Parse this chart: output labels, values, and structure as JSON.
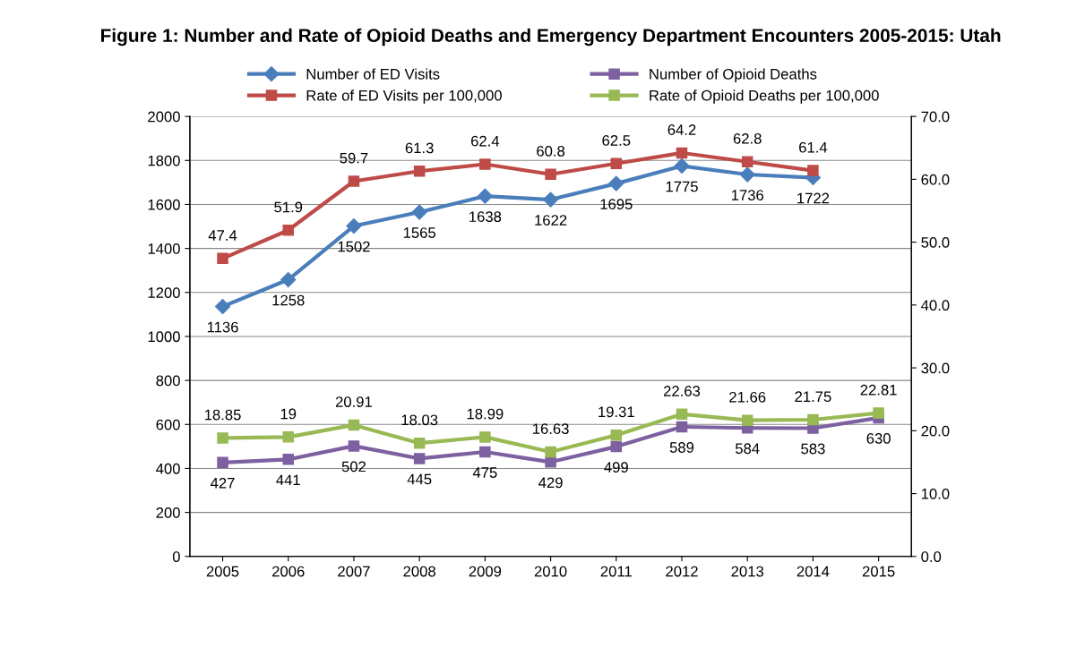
{
  "chart_data": {
    "type": "line",
    "title": "Figure 1: Number and Rate of Opioid Deaths and Emergency Department Encounters 2005-2015: Utah",
    "categories": [
      "2005",
      "2006",
      "2007",
      "2008",
      "2009",
      "2010",
      "2011",
      "2012",
      "2013",
      "2014",
      "2015"
    ],
    "series": [
      {
        "name": "Number of ED Visits",
        "color": "#4a7ebb",
        "marker": "diamond",
        "values": [
          1136,
          1258,
          1502,
          1565,
          1638,
          1622,
          1695,
          1775,
          1736,
          1722,
          null
        ]
      },
      {
        "name": "Rate of ED Visits per 100,000",
        "color": "#be4b48",
        "marker": "square",
        "axis": "y2",
        "values": [
          47.4,
          51.9,
          59.7,
          61.3,
          62.4,
          60.8,
          62.5,
          64.2,
          62.8,
          61.4,
          null
        ]
      },
      {
        "name": "Number of Opioid Deaths",
        "color": "#7d60a0",
        "marker": "square",
        "values": [
          427,
          441,
          502,
          445,
          475,
          429,
          499,
          589,
          584,
          583,
          630
        ]
      },
      {
        "name": "Rate of Opioid Deaths per 100,000",
        "color": "#98b954",
        "marker": "square",
        "axis": "y2",
        "values": [
          18.85,
          19,
          20.91,
          18.03,
          18.99,
          16.63,
          19.31,
          22.63,
          21.66,
          21.75,
          22.81
        ]
      }
    ],
    "ylim": [
      0,
      2000
    ],
    "yticks": [
      0,
      200,
      400,
      600,
      800,
      1000,
      1200,
      1400,
      1600,
      1800,
      2000
    ],
    "y2lim": [
      0,
      70
    ],
    "y2ticks": [
      {
        "value": 0,
        "label": "0.0"
      },
      {
        "value": 10,
        "label": "10.0"
      },
      {
        "value": 20,
        "label": "20.0"
      },
      {
        "value": 30,
        "label": "30.0"
      },
      {
        "value": 40,
        "label": "40.0"
      },
      {
        "value": 50,
        "label": "50.0"
      },
      {
        "value": 60,
        "label": "60.0"
      },
      {
        "value": 70,
        "label": "70.0"
      }
    ],
    "grid": "y",
    "legend": "top",
    "data_labels": true,
    "line_style": "solid"
  }
}
